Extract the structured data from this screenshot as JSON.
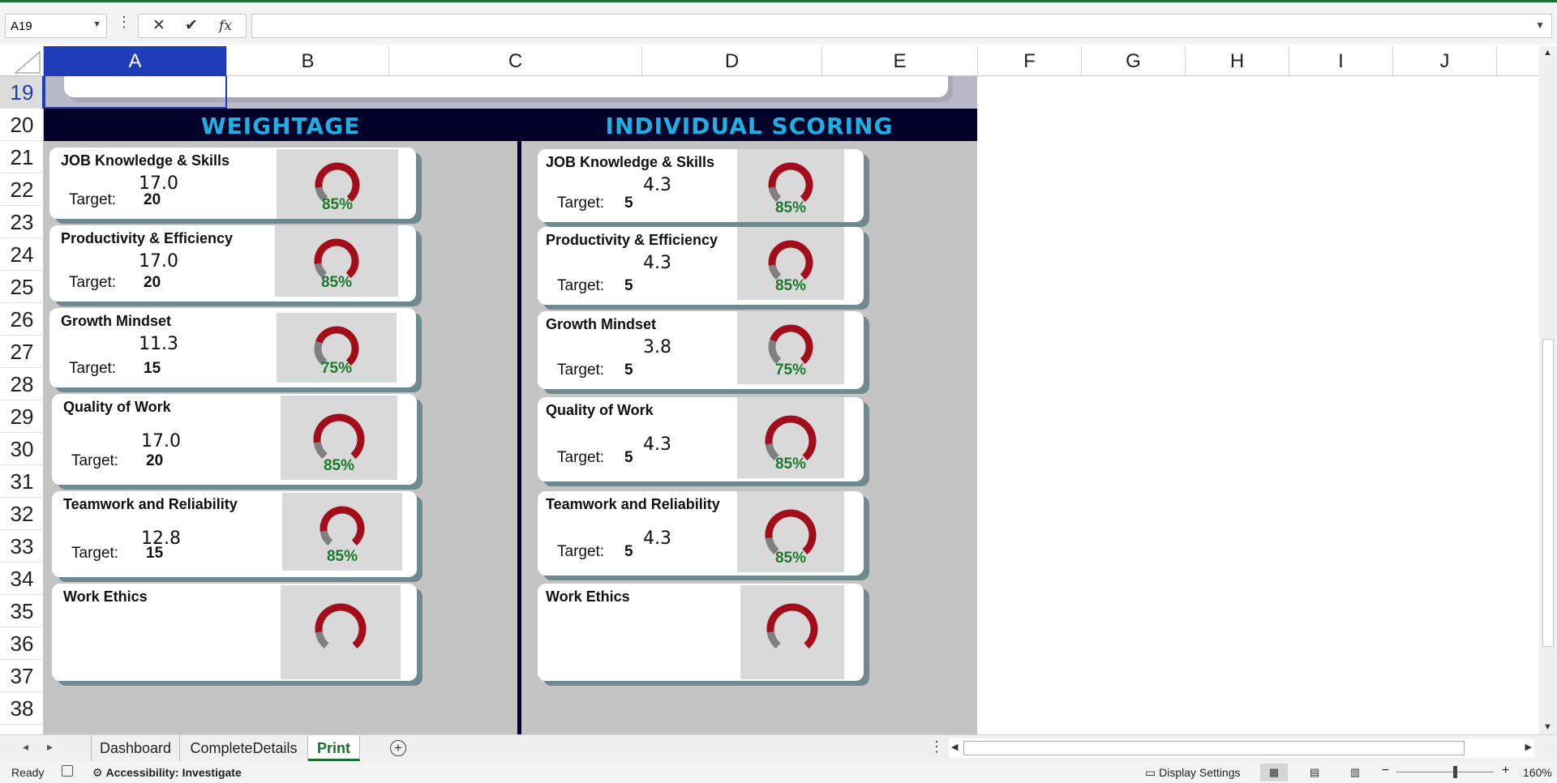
{
  "formula_bar": {
    "name_box": "A19",
    "cancel_symbol": "✕",
    "enter_symbol": "✔",
    "fx_symbol": "fx",
    "formula": ""
  },
  "columns": [
    "A",
    "B",
    "C",
    "D",
    "E",
    "F",
    "G",
    "H",
    "I",
    "J"
  ],
  "rows": [
    "19",
    "20",
    "21",
    "22",
    "23",
    "24",
    "25",
    "26",
    "27",
    "28",
    "29",
    "30",
    "31",
    "32",
    "33",
    "34",
    "35",
    "36",
    "37",
    "38"
  ],
  "sections": {
    "left_title": "WEIGHTAGE",
    "right_title": "INDIVIDUAL SCORING"
  },
  "target_label": "Target:",
  "weightage_cards": [
    {
      "title": "JOB Knowledge & Skills",
      "value": "17.0",
      "target": "20",
      "percent": "85%",
      "fraction": 0.85
    },
    {
      "title": "Productivity & Efficiency",
      "value": "17.0",
      "target": "20",
      "percent": "85%",
      "fraction": 0.85
    },
    {
      "title": "Growth Mindset",
      "value": "11.3",
      "target": "15",
      "percent": "75%",
      "fraction": 0.75
    },
    {
      "title": "Quality of Work",
      "value": "17.0",
      "target": "20",
      "percent": "85%",
      "fraction": 0.85
    },
    {
      "title": "Teamwork and Reliability",
      "value": "12.8",
      "target": "15",
      "percent": "85%",
      "fraction": 0.85
    },
    {
      "title": "Work Ethics",
      "value": "",
      "target": "",
      "percent": "",
      "fraction": 0.85
    }
  ],
  "scoring_cards": [
    {
      "title": "JOB Knowledge & Skills",
      "value": "4.3",
      "target": "5",
      "percent": "85%",
      "fraction": 0.85
    },
    {
      "title": "Productivity & Efficiency",
      "value": "4.3",
      "target": "5",
      "percent": "85%",
      "fraction": 0.85
    },
    {
      "title": "Growth Mindset",
      "value": "3.8",
      "target": "5",
      "percent": "75%",
      "fraction": 0.75
    },
    {
      "title": "Quality of Work",
      "value": "4.3",
      "target": "5",
      "percent": "85%",
      "fraction": 0.85
    },
    {
      "title": "Teamwork and Reliability",
      "value": "4.3",
      "target": "5",
      "percent": "85%",
      "fraction": 0.85
    },
    {
      "title": "Work Ethics",
      "value": "",
      "target": "",
      "percent": "",
      "fraction": 0.85
    }
  ],
  "gauge_colors": {
    "filled": "#a30d1a",
    "remaining": "#7f7f7f",
    "percent_text": "#1a7a2a"
  },
  "sheet_tabs": [
    {
      "label": "Dashboard",
      "active": false
    },
    {
      "label": "CompleteDetails",
      "active": false
    },
    {
      "label": "Print",
      "active": true
    }
  ],
  "status": {
    "ready": "Ready",
    "accessibility": "Accessibility: Investigate",
    "display_settings": "Display Settings",
    "zoom": "160%"
  },
  "accent_color": "#1e3cb8"
}
